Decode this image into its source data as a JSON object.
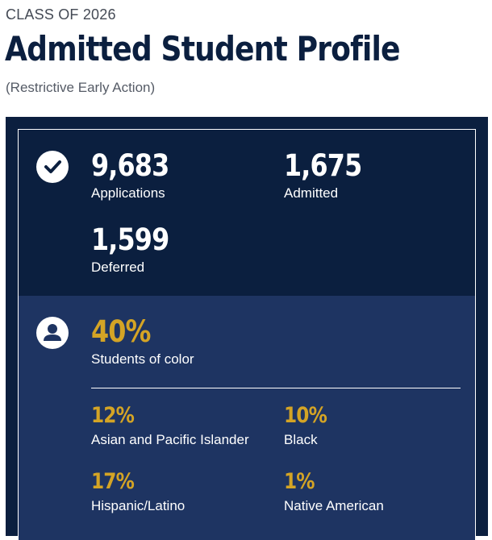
{
  "header": {
    "eyebrow": "CLASS OF 2026",
    "title": "Admitted Student Profile",
    "subtitle": "(Restrictive Early Action)"
  },
  "admissions": {
    "icon": "check-circle-icon",
    "applications": {
      "value": "9,683",
      "label": "Applications"
    },
    "admitted": {
      "value": "1,675",
      "label": "Admitted"
    },
    "deferred": {
      "value": "1,599",
      "label": "Deferred"
    }
  },
  "diversity": {
    "icon": "user-circle-icon",
    "total": {
      "value": "40%",
      "label": "Students of color"
    },
    "breakdown": [
      {
        "value": "12%",
        "label": "Asian and Pacific Islander"
      },
      {
        "value": "10%",
        "label": "Black"
      },
      {
        "value": "17%",
        "label": "Hispanic/Latino"
      },
      {
        "value": "1%",
        "label": "Native American"
      }
    ]
  },
  "colors": {
    "navy": "#0b1f3f",
    "blue": "#1e3462",
    "gold": "#d4a425"
  }
}
